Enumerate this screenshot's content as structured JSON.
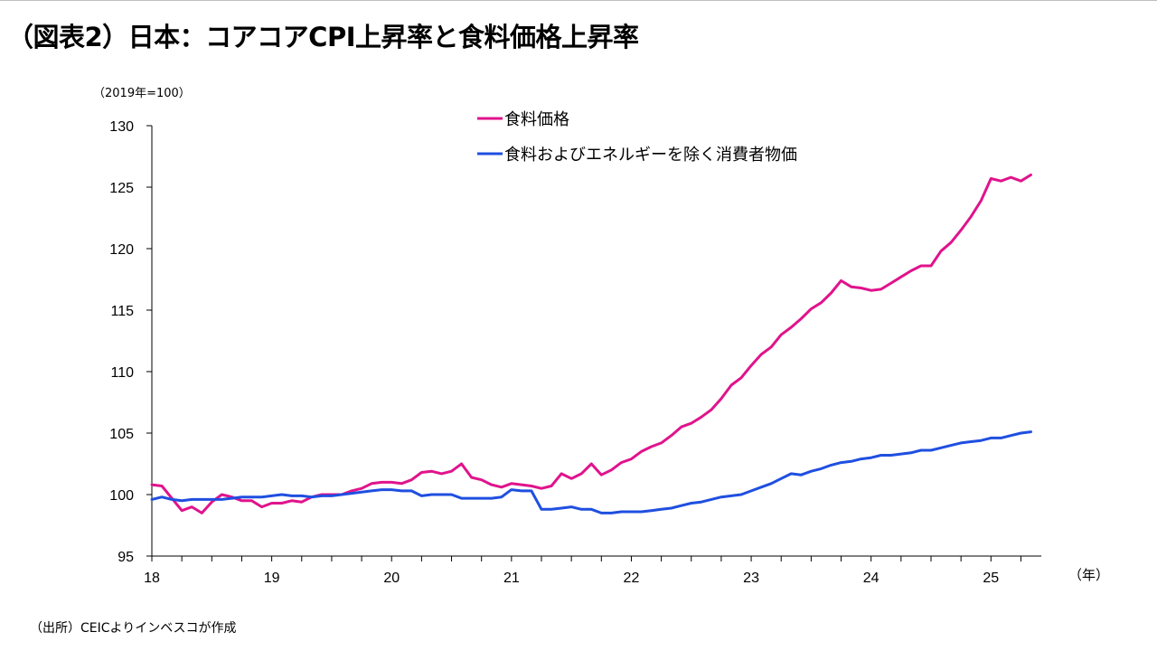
{
  "title": "（図表2）日本：コアコアCPI上昇率と食料価格上昇率",
  "unit_label": "（2019年=100）",
  "x_unit_label": "（年）",
  "source": "（出所）CEICよりインベスコが作成",
  "chart_data": {
    "type": "line",
    "ylim": [
      95,
      130
    ],
    "yticks": [
      95,
      100,
      105,
      110,
      115,
      120,
      125,
      130
    ],
    "x_range": [
      2018.0,
      2025.42
    ],
    "xticks": [
      {
        "value": 2018,
        "label": "18"
      },
      {
        "value": 2019,
        "label": "19"
      },
      {
        "value": 2020,
        "label": "20"
      },
      {
        "value": 2021,
        "label": "21"
      },
      {
        "value": 2022,
        "label": "22"
      },
      {
        "value": 2023,
        "label": "23"
      },
      {
        "value": 2024,
        "label": "24"
      },
      {
        "value": 2025,
        "label": "25"
      }
    ],
    "legend_position": "top-center",
    "grid": false,
    "series": [
      {
        "name": "食料価格",
        "color": "#E0138C",
        "start": "2018-01",
        "values": [
          100.8,
          100.7,
          99.7,
          98.7,
          99.0,
          98.5,
          99.4,
          100.0,
          99.8,
          99.5,
          99.5,
          99.0,
          99.3,
          99.3,
          99.5,
          99.4,
          99.8,
          100.0,
          100.0,
          100.0,
          100.3,
          100.5,
          100.9,
          101.0,
          101.0,
          100.9,
          101.2,
          101.8,
          101.9,
          101.7,
          101.9,
          102.5,
          101.4,
          101.2,
          100.8,
          100.6,
          100.9,
          100.8,
          100.7,
          100.5,
          100.7,
          101.7,
          101.3,
          101.7,
          102.5,
          101.6,
          102.0,
          102.6,
          102.9,
          103.5,
          103.9,
          104.2,
          104.8,
          105.5,
          105.8,
          106.3,
          106.9,
          107.8,
          108.9,
          109.5,
          110.5,
          111.4,
          112.0,
          113.0,
          113.6,
          114.3,
          115.1,
          115.6,
          116.4,
          117.4,
          116.9,
          116.8,
          116.6,
          116.7,
          117.2,
          117.7,
          118.2,
          118.6,
          118.6,
          119.8,
          120.5,
          121.5,
          122.6,
          123.9,
          125.7,
          125.5,
          125.8,
          125.5,
          126.0
        ]
      },
      {
        "name": "食料およびエネルギーを除く消費者物価",
        "color": "#1F4FE0",
        "start": "2018-01",
        "values": [
          99.6,
          99.8,
          99.6,
          99.5,
          99.6,
          99.6,
          99.6,
          99.6,
          99.7,
          99.8,
          99.8,
          99.8,
          99.9,
          100.0,
          99.9,
          99.9,
          99.8,
          99.9,
          99.9,
          100.0,
          100.1,
          100.2,
          100.3,
          100.4,
          100.4,
          100.3,
          100.3,
          99.9,
          100.0,
          100.0,
          100.0,
          99.7,
          99.7,
          99.7,
          99.7,
          99.8,
          100.4,
          100.3,
          100.3,
          98.8,
          98.8,
          98.9,
          99.0,
          98.8,
          98.8,
          98.5,
          98.5,
          98.6,
          98.6,
          98.6,
          98.7,
          98.8,
          98.9,
          99.1,
          99.3,
          99.4,
          99.6,
          99.8,
          99.9,
          100.0,
          100.3,
          100.6,
          100.9,
          101.3,
          101.7,
          101.6,
          101.9,
          102.1,
          102.4,
          102.6,
          102.7,
          102.9,
          103.0,
          103.2,
          103.2,
          103.3,
          103.4,
          103.6,
          103.6,
          103.8,
          104.0,
          104.2,
          104.3,
          104.4,
          104.6,
          104.6,
          104.8,
          105.0,
          105.1
        ]
      }
    ]
  }
}
